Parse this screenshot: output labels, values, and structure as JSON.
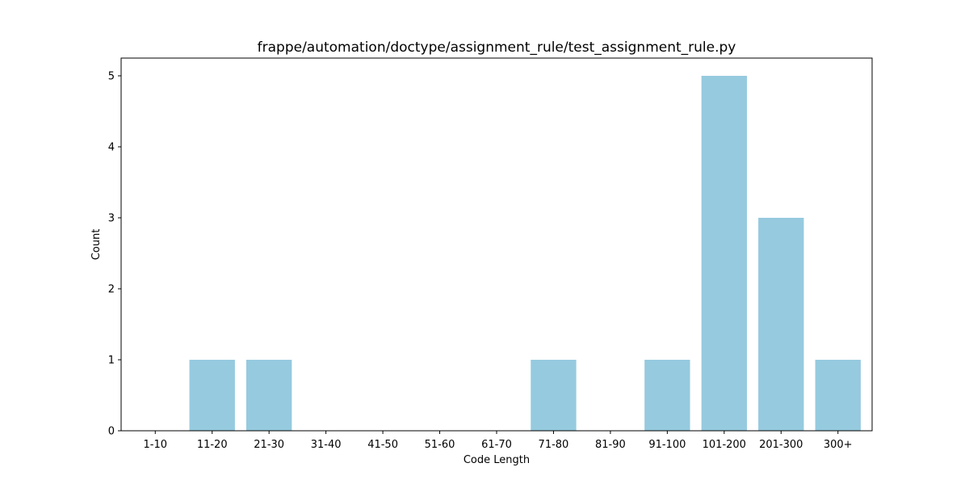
{
  "chart_data": {
    "type": "bar",
    "title": "frappe/automation/doctype/assignment_rule/test_assignment_rule.py",
    "xlabel": "Code Length",
    "ylabel": "Count",
    "categories": [
      "1-10",
      "11-20",
      "21-30",
      "31-40",
      "41-50",
      "51-60",
      "61-70",
      "71-80",
      "81-90",
      "91-100",
      "101-200",
      "201-300",
      "300+"
    ],
    "values": [
      0,
      1,
      1,
      0,
      0,
      0,
      0,
      1,
      0,
      1,
      5,
      3,
      1
    ],
    "ylim": [
      0,
      5.25
    ],
    "yticks": [
      0,
      1,
      2,
      3,
      4,
      5
    ],
    "bar_color": "#96cadf",
    "grid": false,
    "legend": "none"
  }
}
